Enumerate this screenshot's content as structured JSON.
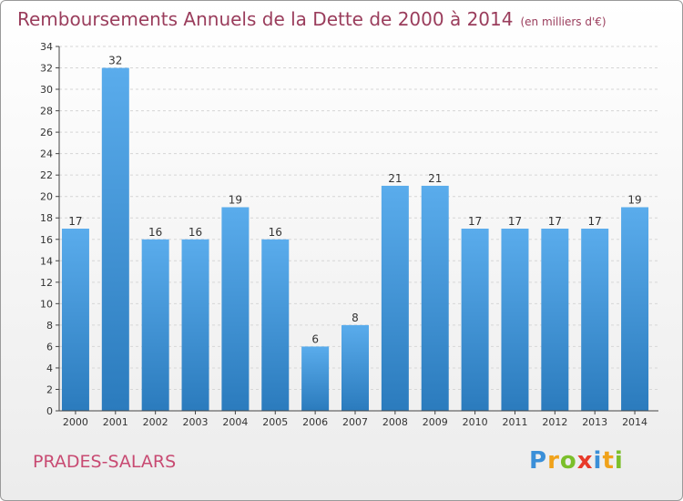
{
  "title": "Remboursements Annuels de la Dette de 2000 à 2014",
  "subtitle": "(en milliers d'€)",
  "commune": "PRADES-SALARS",
  "logo": {
    "letters": [
      "P",
      "r",
      "o",
      "x",
      "i",
      "t",
      "i"
    ],
    "colors": [
      "#3a8fd8",
      "#f0a21a",
      "#7bbf2a",
      "#e83a2a",
      "#3a8fd8",
      "#f0a21a",
      "#7bbf2a"
    ]
  },
  "chart_data": {
    "type": "bar",
    "categories": [
      "2000",
      "2001",
      "2002",
      "2003",
      "2004",
      "2005",
      "2006",
      "2007",
      "2008",
      "2009",
      "2010",
      "2011",
      "2012",
      "2013",
      "2014"
    ],
    "values": [
      17,
      32,
      16,
      16,
      19,
      16,
      6,
      8,
      21,
      21,
      17,
      17,
      17,
      17,
      19
    ],
    "ylim": [
      0,
      34
    ],
    "yticks": [
      0,
      2,
      4,
      6,
      8,
      10,
      12,
      14,
      16,
      18,
      20,
      22,
      24,
      26,
      28,
      30,
      32,
      34
    ],
    "grid": true,
    "bar_color_top": "#5aacec",
    "bar_color_bottom": "#2b7bbd"
  }
}
